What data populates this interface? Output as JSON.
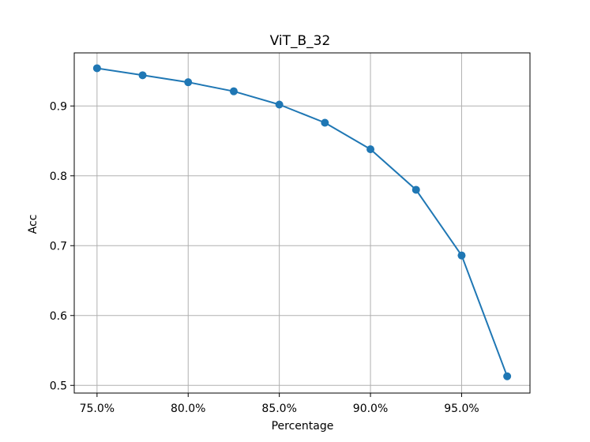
{
  "chart_data": {
    "type": "line",
    "title": "ViT_B_32",
    "xlabel": "Percentage",
    "ylabel": "Acc",
    "x_tick_labels": [
      "75.0%",
      "80.0%",
      "85.0%",
      "90.0%",
      "95.0%"
    ],
    "x_ticks": [
      75.0,
      80.0,
      85.0,
      90.0,
      95.0
    ],
    "y_tick_labels": [
      "0.5",
      "0.6",
      "0.7",
      "0.8",
      "0.9"
    ],
    "y_ticks": [
      0.5,
      0.6,
      0.7,
      0.8,
      0.9
    ],
    "xlim": [
      73.75,
      98.75
    ],
    "ylim": [
      0.489,
      0.976
    ],
    "grid": true,
    "series": [
      {
        "color": "#1f77b4",
        "marker": "circle",
        "x": [
          75.0,
          77.5,
          80.0,
          82.5,
          85.0,
          87.5,
          90.0,
          92.5,
          95.0,
          97.5
        ],
        "values": [
          0.954,
          0.944,
          0.934,
          0.921,
          0.902,
          0.876,
          0.838,
          0.78,
          0.686,
          0.513
        ]
      }
    ]
  }
}
